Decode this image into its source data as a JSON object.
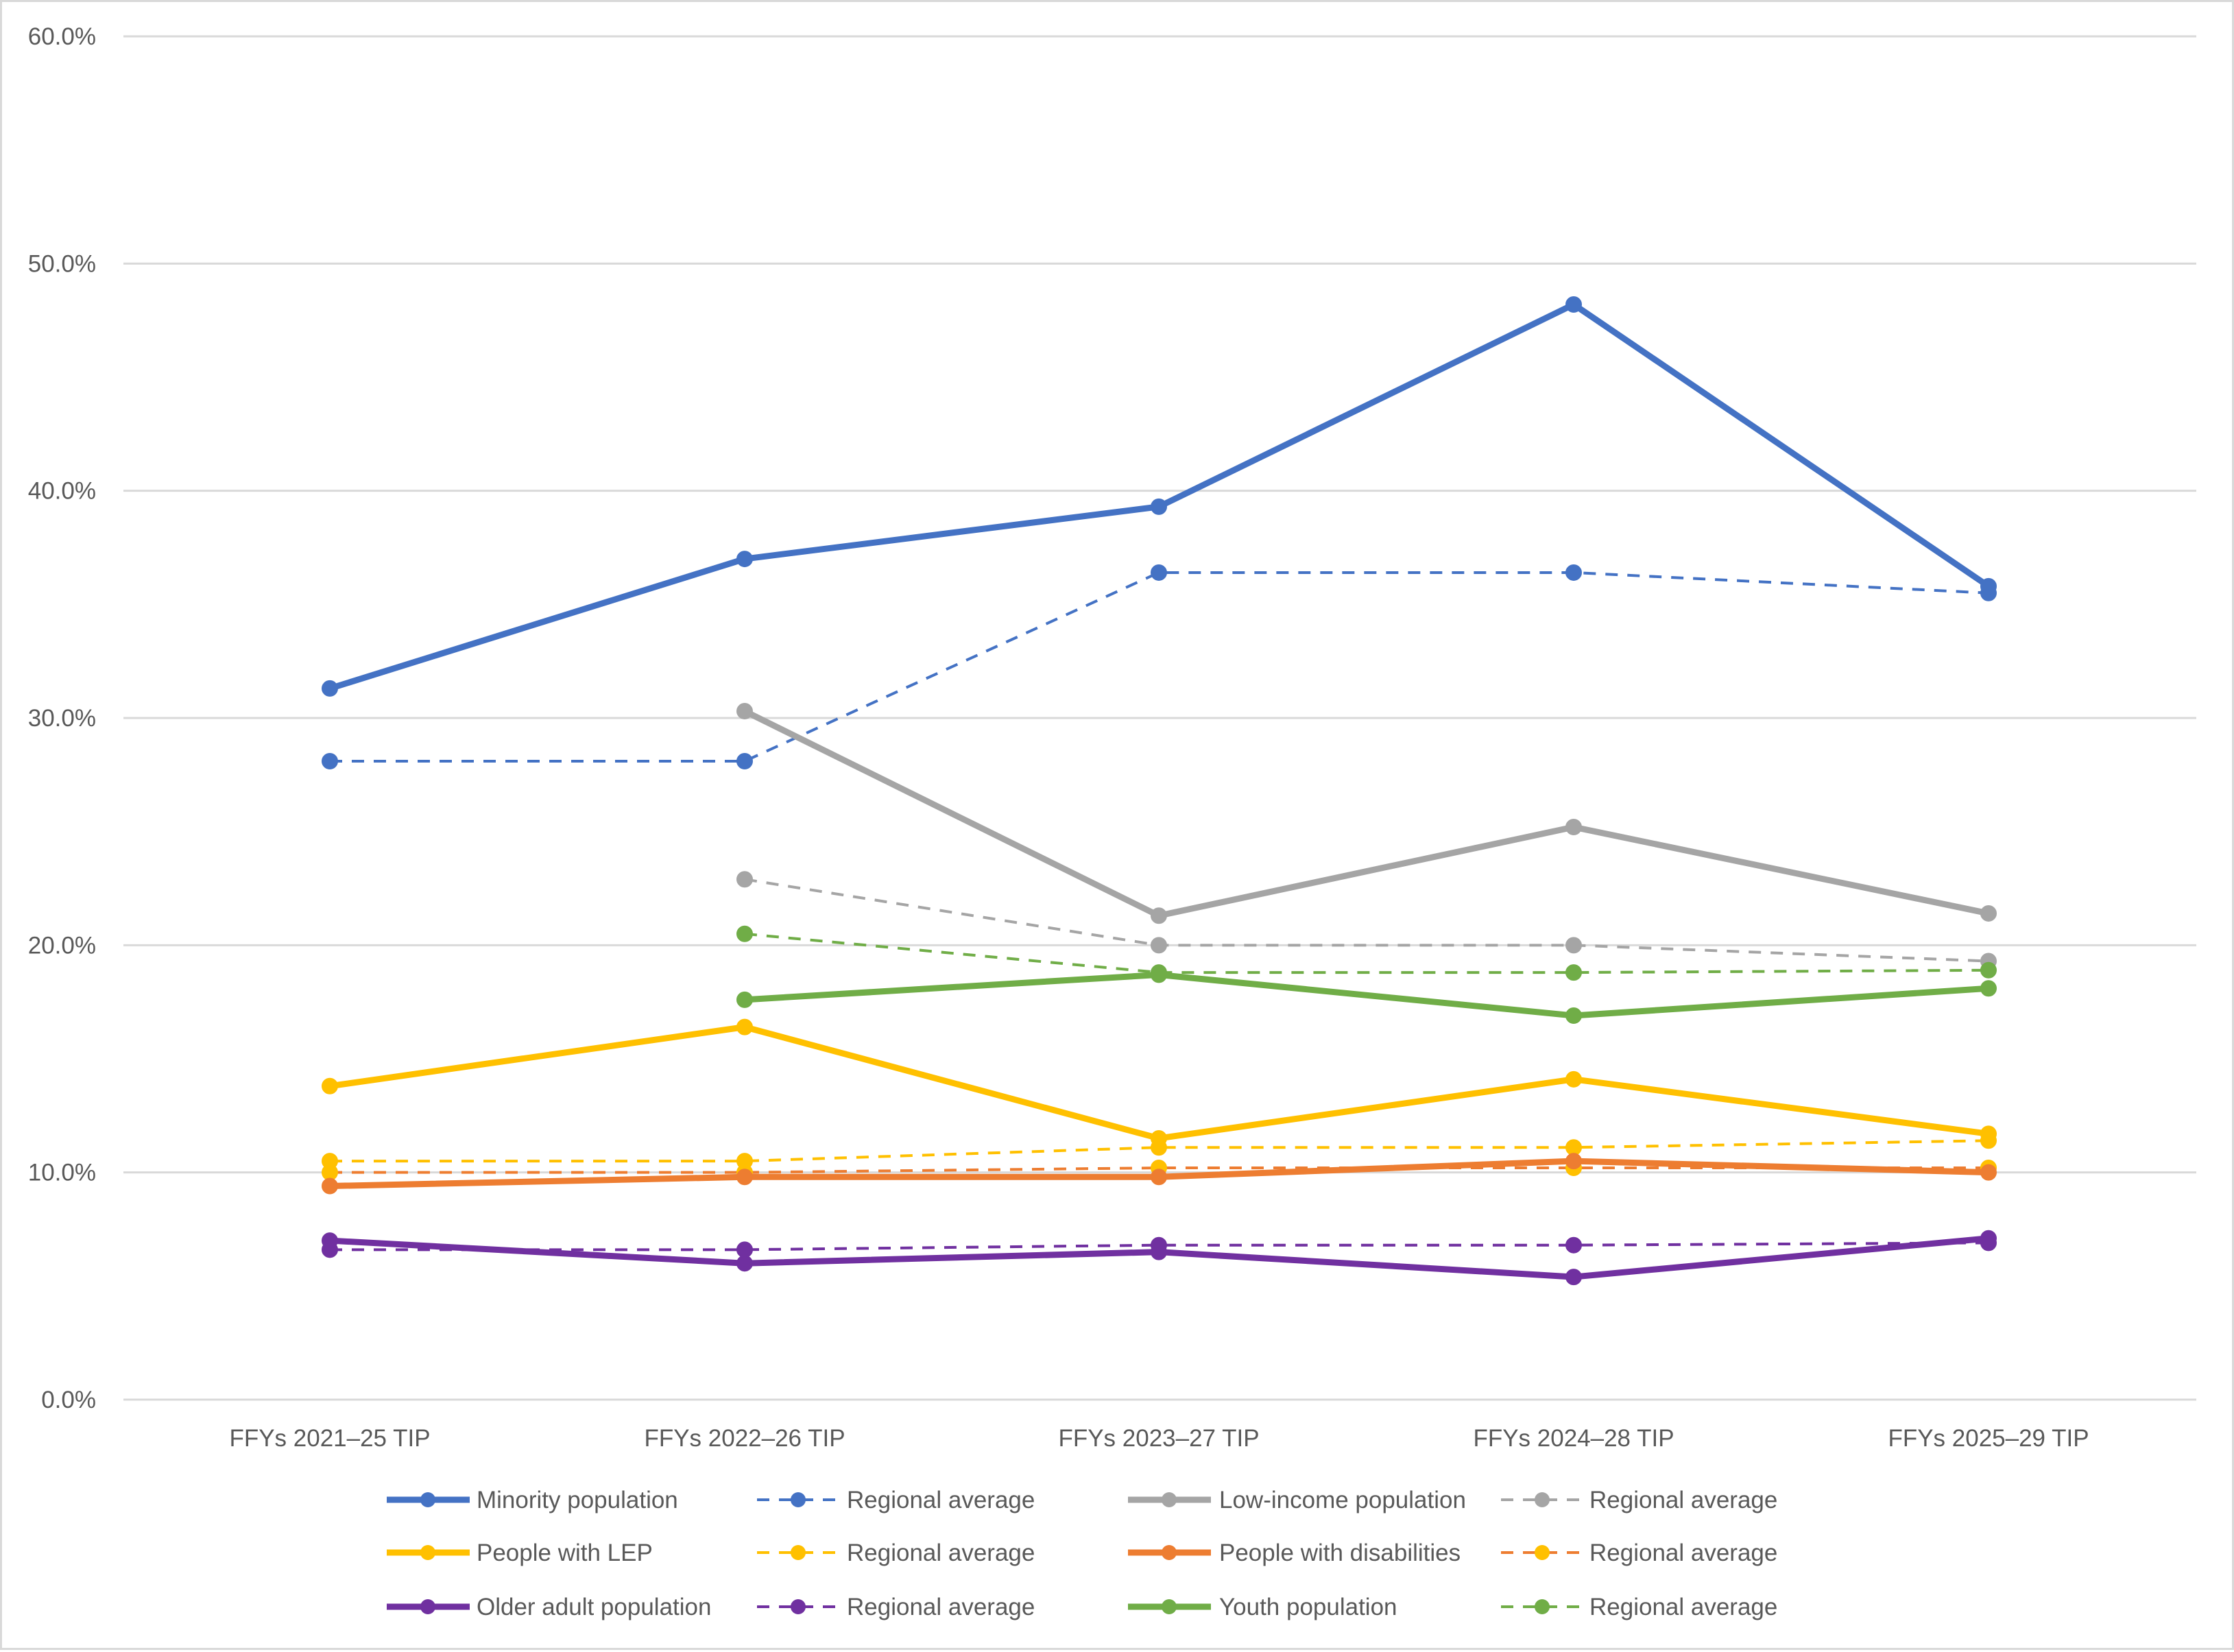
{
  "chart_data": {
    "type": "line",
    "title": "",
    "xlabel": "",
    "ylabel": "",
    "categories": [
      "FFYs 2021–25 TIP",
      "FFYs 2022–26 TIP",
      "FFYs 2023–27 TIP",
      "FFYs 2024–28 TIP",
      "FFYs 2025–29 TIP"
    ],
    "ylim": [
      0,
      60
    ],
    "y_ticks": [
      "0.0%",
      "10.0%",
      "20.0%",
      "30.0%",
      "40.0%",
      "50.0%",
      "60.0%"
    ],
    "y_unit": "percent",
    "grid": "horizontal",
    "legend_position": "bottom",
    "series": [
      {
        "name": "Minority population",
        "color": "#4472C4",
        "marker_color": "#4472C4",
        "dashed": false,
        "values": [
          31.3,
          37.0,
          39.3,
          48.2,
          35.8
        ]
      },
      {
        "name": "Regional average",
        "color": "#4472C4",
        "marker_color": "#4472C4",
        "dashed": true,
        "values": [
          28.1,
          28.1,
          36.4,
          36.4,
          35.5
        ]
      },
      {
        "name": "Low-income population",
        "color": "#A5A5A5",
        "marker_color": "#A5A5A5",
        "dashed": false,
        "values": [
          null,
          30.3,
          21.3,
          25.2,
          21.4
        ]
      },
      {
        "name": "Regional average",
        "color": "#A5A5A5",
        "marker_color": "#A5A5A5",
        "dashed": true,
        "values": [
          null,
          22.9,
          20.0,
          20.0,
          19.3
        ]
      },
      {
        "name": "People with LEP",
        "color": "#FFC000",
        "marker_color": "#FFC000",
        "dashed": false,
        "values": [
          13.8,
          16.4,
          11.5,
          14.1,
          11.7
        ]
      },
      {
        "name": "Regional average",
        "color": "#FFC000",
        "marker_color": "#FFC000",
        "dashed": true,
        "values": [
          10.5,
          10.5,
          11.1,
          11.1,
          11.4
        ]
      },
      {
        "name": "People with disabilities",
        "color": "#ED7D31",
        "marker_color": "#ED7D31",
        "dashed": false,
        "values": [
          9.4,
          9.8,
          9.8,
          10.5,
          10.0
        ]
      },
      {
        "name": "Regional average",
        "color": "#ED7D31",
        "marker_color": "#FFC000",
        "dashed": true,
        "values": [
          10.0,
          10.0,
          10.2,
          10.2,
          10.2
        ]
      },
      {
        "name": "Older adult population",
        "color": "#7030A0",
        "marker_color": "#7030A0",
        "dashed": false,
        "values": [
          7.0,
          6.0,
          6.5,
          5.4,
          7.1
        ]
      },
      {
        "name": "Regional average",
        "color": "#7030A0",
        "marker_color": "#7030A0",
        "dashed": true,
        "values": [
          6.6,
          6.6,
          6.8,
          6.8,
          6.9
        ]
      },
      {
        "name": "Youth population",
        "color": "#70AD47",
        "marker_color": "#70AD47",
        "dashed": false,
        "values": [
          null,
          17.6,
          18.7,
          16.9,
          18.1
        ]
      },
      {
        "name": "Regional average",
        "color": "#70AD47",
        "marker_color": "#70AD47",
        "dashed": true,
        "values": [
          null,
          20.5,
          18.8,
          18.8,
          18.9
        ]
      }
    ]
  }
}
